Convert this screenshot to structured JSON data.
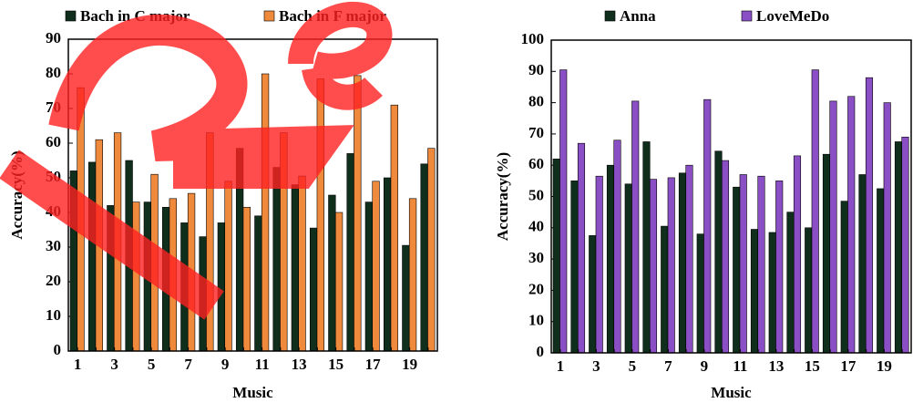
{
  "chart_data": [
    {
      "type": "bar",
      "xlabel": "Music",
      "ylabel": "Accuracy(%)",
      "categories": [
        "1",
        null,
        "3",
        null,
        "5",
        null,
        "7",
        null,
        "9",
        null,
        "11",
        null,
        "13",
        null,
        "15",
        null,
        "17",
        null,
        "19",
        null
      ],
      "series": [
        {
          "name": "Bach in C major",
          "color": "#0f2e1c",
          "values": [
            52,
            54.5,
            42,
            55,
            43,
            41.5,
            37,
            33,
            37,
            58.5,
            39,
            53,
            48,
            35.5,
            45,
            57,
            43,
            50,
            30.5,
            54
          ]
        },
        {
          "name": "Bach in F major",
          "color": "#ef8a3c",
          "values": [
            76,
            61,
            63,
            43,
            51,
            44,
            45.5,
            63,
            49,
            41.5,
            80,
            63,
            50.5,
            78.5,
            40,
            79.5,
            49,
            71,
            44,
            58.5
          ]
        }
      ],
      "ylim": [
        0,
        90
      ],
      "yticks": [
        0,
        10,
        20,
        30,
        40,
        50,
        60,
        70,
        80,
        90
      ]
    },
    {
      "type": "bar",
      "xlabel": "Music",
      "ylabel": "Accuracy(%)",
      "categories": [
        "1",
        null,
        "3",
        null,
        "5",
        null,
        "7",
        null,
        "9",
        null,
        "11",
        null,
        "13",
        null,
        "15",
        null,
        "17",
        null,
        "19",
        null
      ],
      "series": [
        {
          "name": "Anna",
          "color": "#0f2e1c",
          "values": [
            62,
            55,
            37.5,
            60,
            54,
            67.5,
            40.5,
            57.5,
            38,
            64.5,
            53,
            39.5,
            38.5,
            45,
            40,
            63.5,
            48.5,
            57,
            52.5,
            67.5
          ]
        },
        {
          "name": "LoveMeDo",
          "color": "#8a4fc4",
          "values": [
            90.5,
            67,
            56.5,
            68,
            80.5,
            55.5,
            56,
            60,
            81,
            61.5,
            57,
            56.5,
            55,
            63,
            90.5,
            80.5,
            82,
            88,
            80,
            69
          ]
        }
      ],
      "ylim": [
        0,
        100
      ],
      "yticks": [
        0,
        10,
        20,
        30,
        40,
        50,
        60,
        70,
        80,
        90,
        100
      ]
    }
  ]
}
